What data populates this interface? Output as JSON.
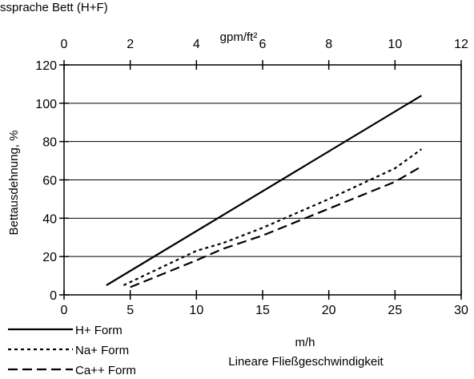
{
  "clipped_top_text": "ssprache   Bett (H+F)",
  "chart_data": {
    "type": "line",
    "xlabel": "m/h",
    "xlabel_secondary": "Lineare Fließgeschwindigkeit",
    "x2label": "gpm/ft²",
    "ylabel": "Bettausdehnung, %",
    "xlim": [
      0,
      30
    ],
    "x2lim": [
      0,
      12
    ],
    "ylim": [
      0,
      120
    ],
    "x_ticks": [
      "0",
      "5",
      "10",
      "15",
      "20",
      "25",
      "30"
    ],
    "x2_ticks": [
      "0",
      "2",
      "4",
      "6",
      "8",
      "10",
      "12"
    ],
    "y_ticks": [
      "0",
      "20",
      "40",
      "60",
      "80",
      "100",
      "120"
    ],
    "grid": "horizontal",
    "legend_position": "bottom-left",
    "series": [
      {
        "name": "H+ Form",
        "style": "solid",
        "points": [
          [
            3.2,
            5
          ],
          [
            27,
            104
          ]
        ]
      },
      {
        "name": "Na+ Form",
        "style": "dotted",
        "points": [
          [
            4.5,
            5
          ],
          [
            10,
            23
          ],
          [
            12,
            27
          ],
          [
            15,
            35
          ],
          [
            20,
            50
          ],
          [
            25,
            66
          ],
          [
            27,
            76
          ]
        ]
      },
      {
        "name": "Ca++ Form",
        "style": "dashed",
        "points": [
          [
            5,
            4
          ],
          [
            10,
            18
          ],
          [
            12,
            24
          ],
          [
            15,
            31
          ],
          [
            20,
            45
          ],
          [
            25,
            59
          ],
          [
            27,
            67
          ]
        ]
      }
    ]
  }
}
